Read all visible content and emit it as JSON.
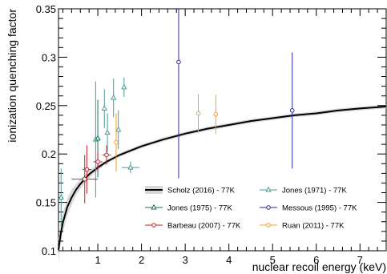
{
  "chart_data": {
    "type": "scatter",
    "xlabel": "nuclear recoil energy (keV)",
    "ylabel": "ionization quenching factor",
    "xlim": [
      0.1,
      7.6
    ],
    "ylim": [
      0.1,
      0.35
    ],
    "x_ticks": [
      1,
      2,
      3,
      4,
      5,
      6,
      7
    ],
    "x_tick_labels": [
      "1",
      "2",
      "3",
      "4",
      "5",
      "6",
      "7"
    ],
    "y_ticks": [
      0.1,
      0.15,
      0.2,
      0.25,
      0.3,
      0.35
    ],
    "y_tick_labels": [
      "0.1",
      "0.15",
      "0.2",
      "0.25",
      "0.3",
      "0.35"
    ],
    "legend_placement": "bottom-right",
    "series": [
      {
        "name": "Scholz (2016) - 77K",
        "kind": "curve",
        "color": "#000000",
        "band_color": "#d9d9d9",
        "x": [
          0.1,
          0.15,
          0.2,
          0.3,
          0.4,
          0.5,
          0.6,
          0.8,
          1.0,
          1.2,
          1.5,
          2.0,
          2.5,
          3.0,
          3.5,
          4.0,
          4.5,
          5.0,
          5.5,
          6.0,
          6.5,
          7.0,
          7.6
        ],
        "y": [
          0.101,
          0.117,
          0.129,
          0.145,
          0.155,
          0.163,
          0.169,
          0.179,
          0.186,
          0.192,
          0.199,
          0.208,
          0.215,
          0.221,
          0.226,
          0.23,
          0.234,
          0.237,
          0.24,
          0.242,
          0.245,
          0.247,
          0.249
        ],
        "band_half_width": [
          0.012,
          0.011,
          0.01,
          0.009,
          0.008,
          0.006,
          0.005,
          0.004,
          0.003,
          0.002,
          0.002,
          0.002,
          0.002,
          0.002,
          0.002,
          0.002,
          0.002,
          0.002,
          0.002,
          0.002,
          0.002,
          0.002,
          0.002
        ]
      },
      {
        "name": "Jones (1971) - 77K",
        "kind": "points",
        "marker": "triangle-open",
        "color": "#4a9a94",
        "points": [
          {
            "x": 0.16,
            "y": 0.155,
            "yerr": 0.03,
            "xerr": 0.05
          },
          {
            "x": 0.95,
            "y": 0.215,
            "yerr": 0.06,
            "xerr": 0.04
          },
          {
            "x": 1.15,
            "y": 0.247,
            "yerr": 0.02,
            "xerr": 0.04
          },
          {
            "x": 1.22,
            "y": 0.222,
            "yerr": 0.02,
            "xerr": 0.04
          },
          {
            "x": 1.36,
            "y": 0.258,
            "yerr": 0.02,
            "xerr": 0.04
          },
          {
            "x": 1.47,
            "y": 0.225,
            "yerr": 0.02,
            "xerr": 0.04
          },
          {
            "x": 1.6,
            "y": 0.269,
            "yerr": 0.01,
            "xerr": 0.04
          },
          {
            "x": 1.75,
            "y": 0.186,
            "yerr": 0.006,
            "xerr": 0.2
          }
        ]
      },
      {
        "name": "Jones (1975) - 77K",
        "kind": "points",
        "marker": "triangle-open",
        "color": "#1a6e5c",
        "points": [
          {
            "x": 1.0,
            "y": 0.216,
            "yerr": 0.04,
            "xerr": 0.05
          }
        ]
      },
      {
        "name": "Messous (1995) - 77K",
        "kind": "points",
        "marker": "circle-open",
        "color": "#2a2aa0",
        "points": [
          {
            "x": 2.85,
            "y": 0.295,
            "yerr": 0.12,
            "xerr": 0.0
          },
          {
            "x": 5.45,
            "y": 0.245,
            "yerr": 0.06,
            "xerr": 0.0
          }
        ]
      },
      {
        "name": "Barbeau (2007) - 77K",
        "kind": "points",
        "marker": "circle-open",
        "color": "#c0272d",
        "points": [
          {
            "x": 0.7,
            "y": 0.174,
            "yerr": 0.025,
            "xerr": 0.3
          },
          {
            "x": 0.75,
            "y": 0.184,
            "yerr": 0.025,
            "xerr": 0.1
          },
          {
            "x": 1.0,
            "y": 0.192,
            "yerr": 0.01,
            "xerr": 0.1
          },
          {
            "x": 1.2,
            "y": 0.199,
            "yerr": 0.01,
            "xerr": 0.1
          }
        ]
      },
      {
        "name": "Ruan (2011) - 77K",
        "kind": "points",
        "marker": "circle-open",
        "color": "#f0a020",
        "points": [
          {
            "x": 1.42,
            "y": 0.212,
            "yerr": 0.03,
            "xerr": 0.0
          },
          {
            "x": 3.3,
            "y": 0.242,
            "yerr": 0.02,
            "xerr": 0.0
          },
          {
            "x": 3.7,
            "y": 0.241,
            "yerr": 0.02,
            "xerr": 0.0
          }
        ]
      }
    ],
    "legend_layout": [
      [
        "Scholz (2016) - 77K",
        "Jones (1971) - 77K"
      ],
      [
        "Jones (1975) - 77K",
        "Messous (1995) - 77K"
      ],
      [
        "Barbeau (2007) - 77K",
        "Ruan (2011) - 77K"
      ]
    ]
  }
}
